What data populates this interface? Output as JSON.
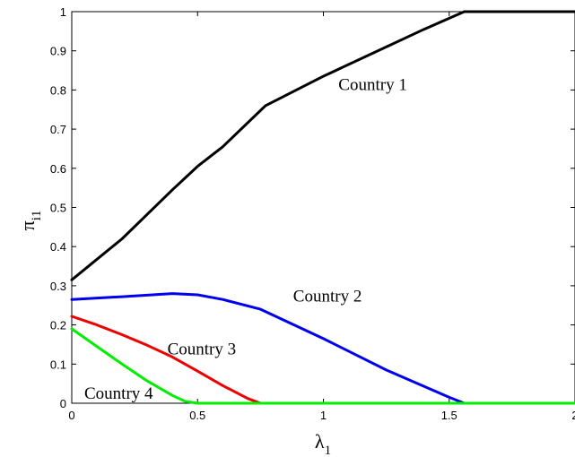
{
  "chart_data": {
    "type": "line",
    "xlabel": "λ",
    "xlabel_sub": "1",
    "ylabel": "π",
    "ylabel_sub": "i1",
    "xlim": [
      0,
      2
    ],
    "ylim": [
      0,
      1
    ],
    "grid": false,
    "x_ticks": [
      0,
      0.5,
      1,
      1.5,
      2
    ],
    "x_tick_labels": [
      "0",
      "0.5",
      "1",
      "1.5",
      "2"
    ],
    "y_ticks": [
      0,
      0.1,
      0.2,
      0.3,
      0.4,
      0.5,
      0.6,
      0.7,
      0.8,
      0.9,
      1
    ],
    "y_tick_labels": [
      "0",
      "0.1",
      "0.2",
      "0.3",
      "0.4",
      "0.5",
      "0.6",
      "0.7",
      "0.8",
      "0.9",
      "1"
    ],
    "series": [
      {
        "name": "Country 1",
        "color": "#000000",
        "x": [
          0,
          0.2,
          0.4,
          0.5,
          0.6,
          0.77,
          1.0,
          1.2,
          1.4,
          1.56,
          1.7,
          2.0
        ],
        "y": [
          0.315,
          0.42,
          0.545,
          0.605,
          0.655,
          0.76,
          0.835,
          0.895,
          0.955,
          1.0,
          1.0,
          1.0
        ],
        "label_at": [
          1.06,
          0.8
        ]
      },
      {
        "name": "Country 2",
        "color": "#0000ee",
        "x": [
          0,
          0.2,
          0.4,
          0.5,
          0.6,
          0.75,
          1.0,
          1.25,
          1.5,
          1.56,
          1.7,
          2.0
        ],
        "y": [
          0.265,
          0.272,
          0.28,
          0.277,
          0.265,
          0.24,
          0.165,
          0.085,
          0.015,
          0.0,
          0.0,
          0.0
        ],
        "label_at": [
          0.88,
          0.26
        ]
      },
      {
        "name": "Country 3",
        "color": "#ee0000",
        "x": [
          0,
          0.1,
          0.2,
          0.3,
          0.4,
          0.5,
          0.6,
          0.7,
          0.75,
          0.8,
          1.0,
          2.0
        ],
        "y": [
          0.222,
          0.2,
          0.175,
          0.148,
          0.118,
          0.082,
          0.045,
          0.012,
          0.0,
          0.0,
          0.0,
          0.0
        ],
        "label_at": [
          0.38,
          0.125
        ]
      },
      {
        "name": "Country 4",
        "color": "#00ee00",
        "x": [
          0,
          0.1,
          0.2,
          0.3,
          0.4,
          0.45,
          0.5,
          1.0,
          2.0
        ],
        "y": [
          0.19,
          0.145,
          0.1,
          0.057,
          0.02,
          0.005,
          0.0,
          0.0,
          0.0
        ],
        "label_at": [
          0.05,
          0.012
        ]
      }
    ]
  }
}
